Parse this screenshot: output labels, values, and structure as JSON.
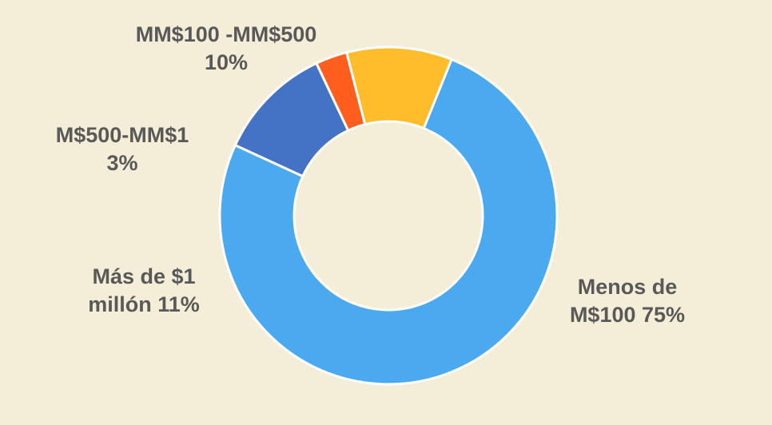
{
  "chart_data": {
    "type": "pie",
    "variant": "donut",
    "title": "",
    "slices": [
      {
        "name": "Menos de M$100",
        "value": 75,
        "percent_label": "75%",
        "color": "#4BA9F0",
        "label_lines": [
          "Menos de",
          "M$100 75%"
        ]
      },
      {
        "name": "Más de $1 millón",
        "value": 11,
        "percent_label": "11%",
        "color": "#4472C4",
        "label_lines": [
          "Más de $1",
          "millón 11%"
        ]
      },
      {
        "name": "M$500-MM$1",
        "value": 3,
        "percent_label": "3%",
        "color": "#FF5E1F",
        "label_lines": [
          "M$500-MM$1",
          "3%"
        ]
      },
      {
        "name": "MM$100 -MM$500",
        "value": 10,
        "percent_label": "10%",
        "color": "#FFBC2B",
        "label_lines": [
          "MM$100 -MM$500",
          "10%"
        ]
      }
    ],
    "start_angle_deg": 22,
    "direction": "clockwise",
    "legend": "none"
  }
}
